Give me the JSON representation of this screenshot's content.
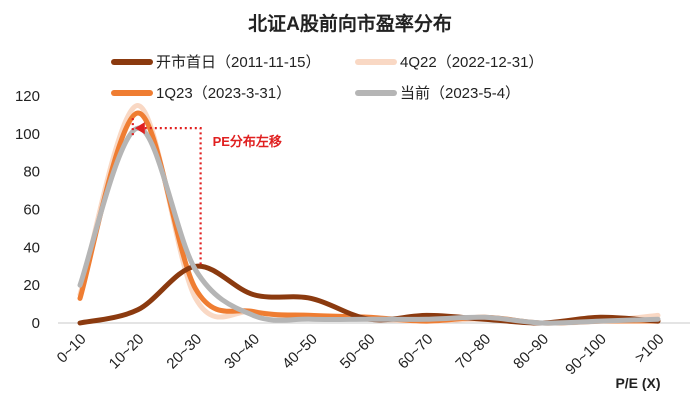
{
  "chart_data": {
    "type": "line",
    "title": "北证A股前向市盈率分布",
    "xlabel": "P/E (X)",
    "ylabel": "",
    "ylim": [
      0,
      120
    ],
    "yticks": [
      0,
      20,
      40,
      60,
      80,
      100,
      120
    ],
    "grid": false,
    "legend_position": "top",
    "categories": [
      "0~10",
      "10~20",
      "20~30",
      "30~40",
      "40~50",
      "50~60",
      "60~70",
      "70~80",
      "80~90",
      "90~100",
      ">100"
    ],
    "series": [
      {
        "name": "开市首日（2011-11-15）",
        "color": "#8b3a0f",
        "values": [
          0,
          7,
          30,
          15,
          13,
          2,
          4,
          2,
          0,
          3,
          1
        ]
      },
      {
        "name": "4Q22（2022-12-31）",
        "color": "#f9d8c4",
        "values": [
          15,
          115,
          13,
          6,
          3,
          2,
          1,
          2,
          0,
          1,
          4
        ]
      },
      {
        "name": "1Q23（2023-3-31）",
        "color": "#ef7d32",
        "values": [
          13,
          111,
          18,
          6,
          4,
          3,
          1,
          3,
          0,
          1,
          1
        ]
      },
      {
        "name": "当前（2023-5-4）",
        "color": "#b5b5b5",
        "values": [
          20,
          103,
          28,
          4,
          2,
          2,
          2,
          3,
          0,
          1,
          2
        ]
      }
    ],
    "annotations": [
      {
        "text": "PE分布左移",
        "color": "#e02020"
      }
    ]
  }
}
